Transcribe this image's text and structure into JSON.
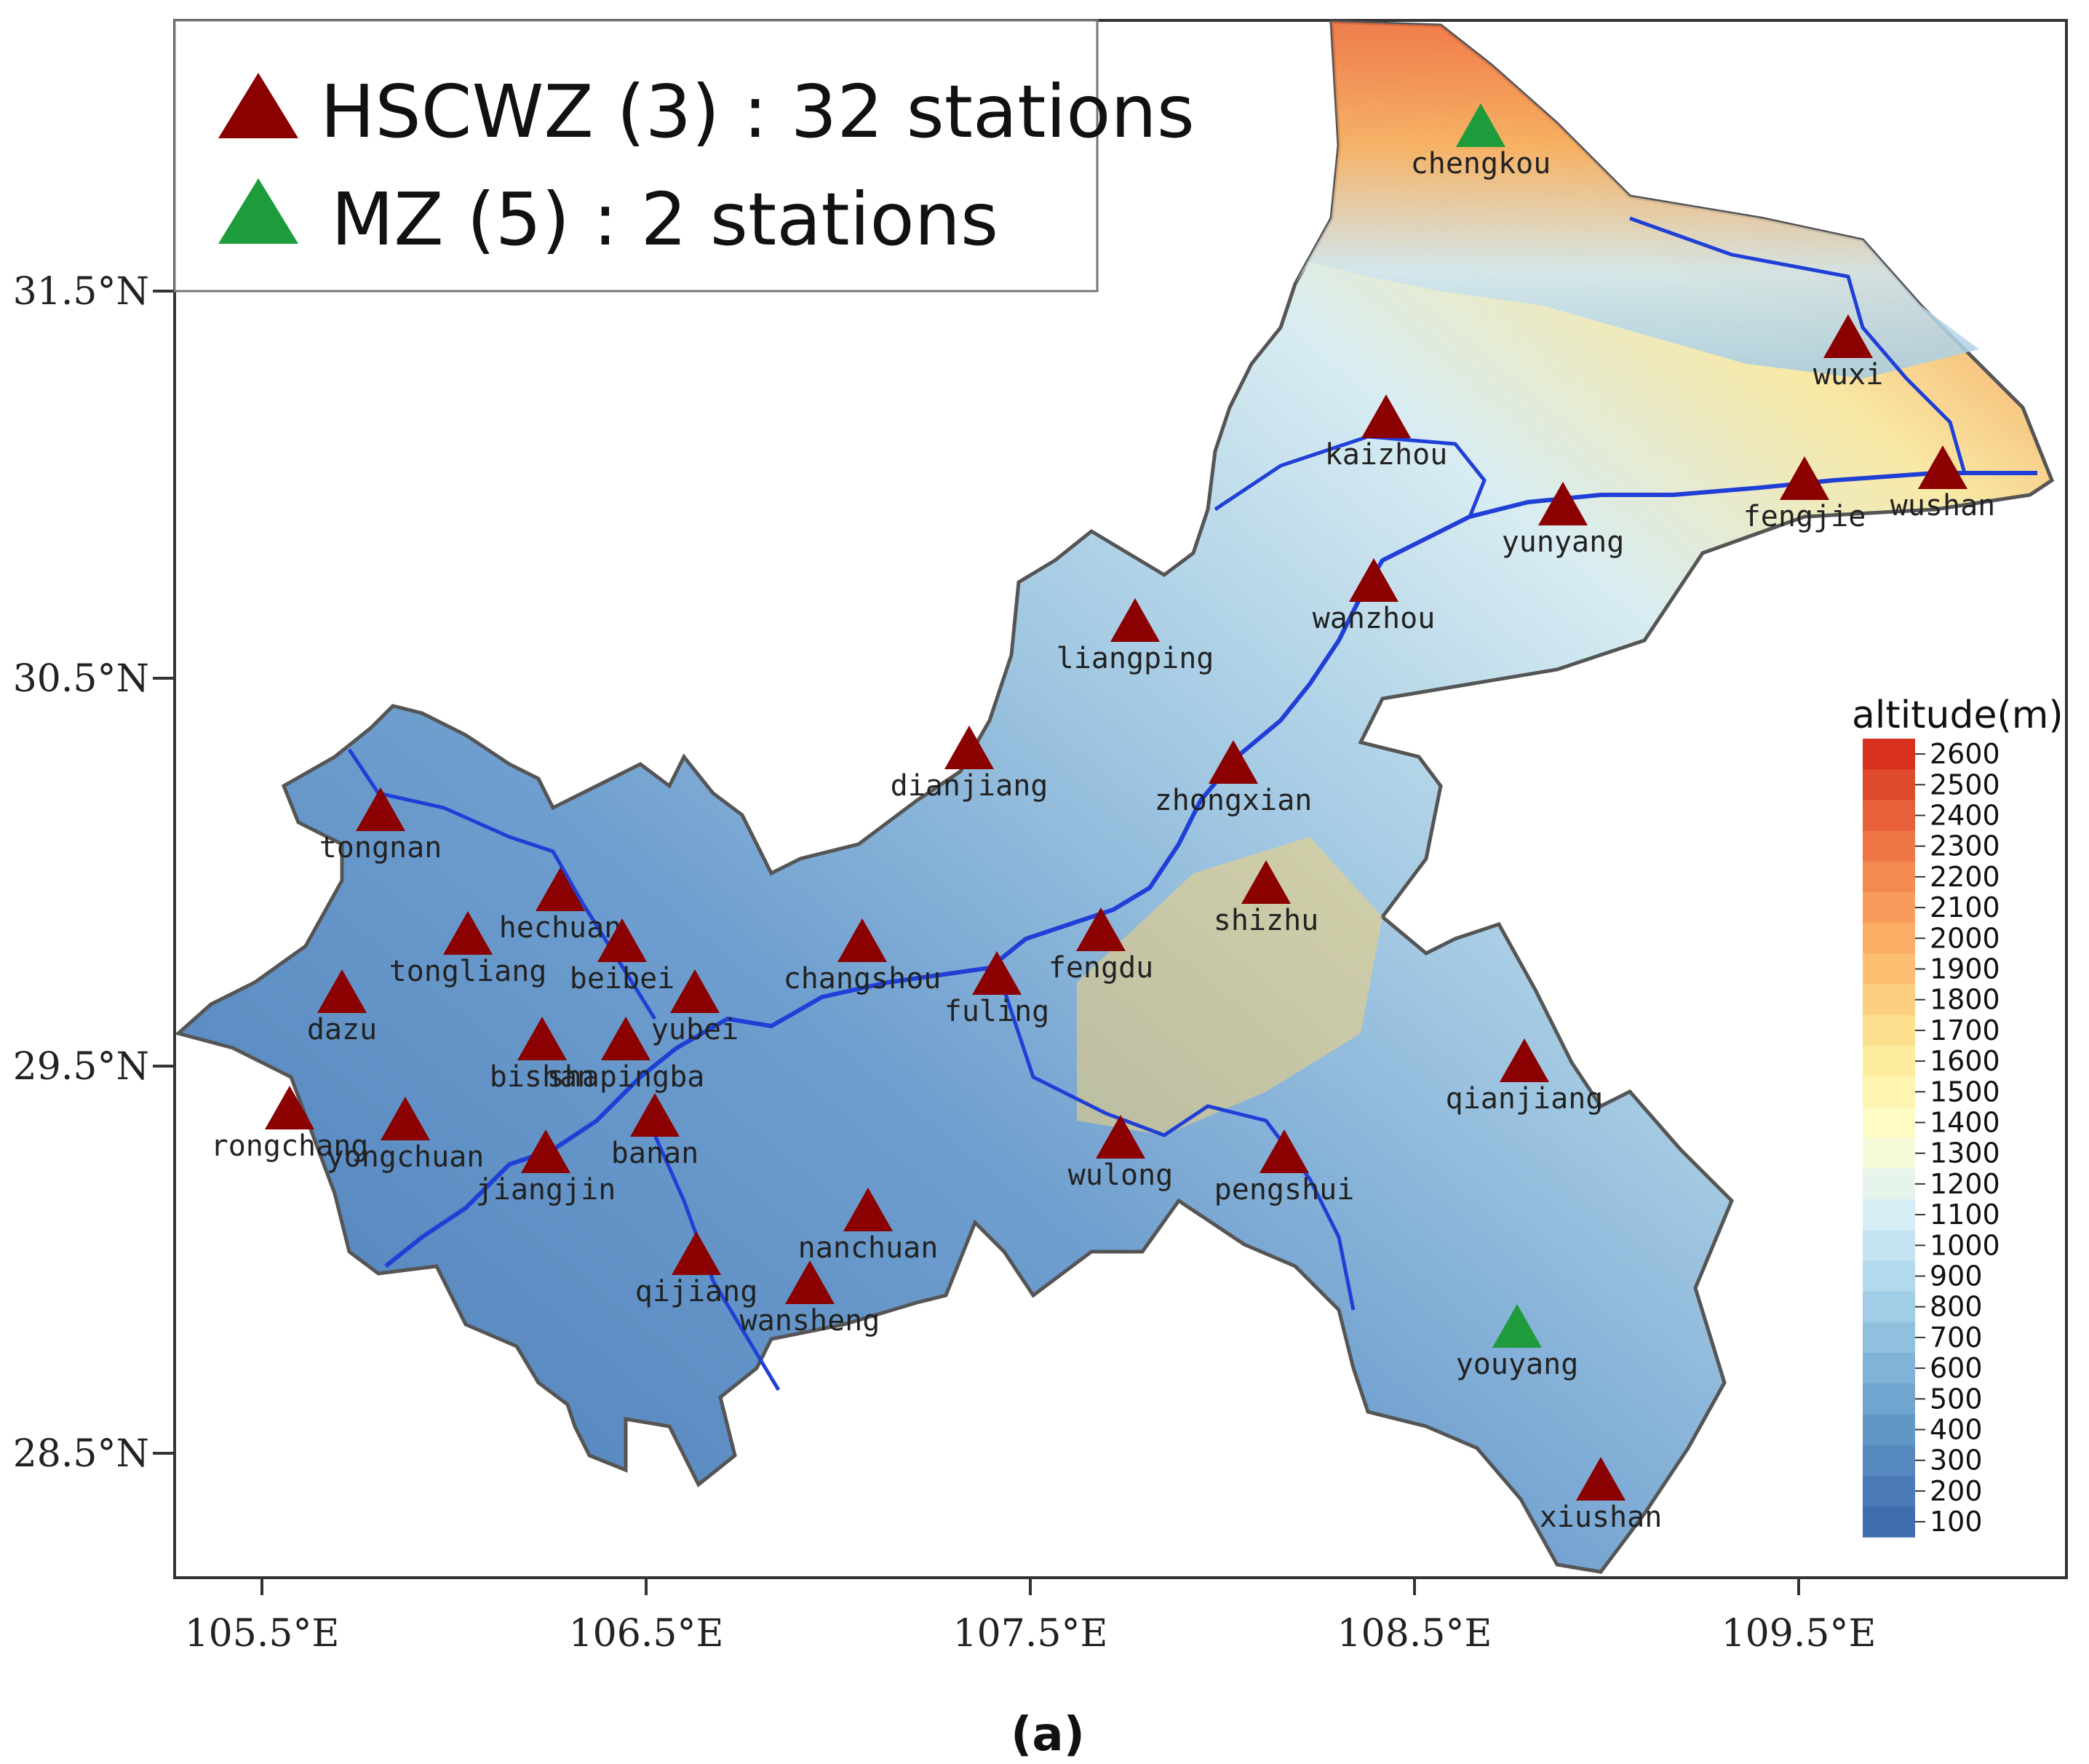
{
  "legend": {
    "items": [
      {
        "label": "HSCWZ (3) : 32 stations",
        "color": "#8b0000"
      },
      {
        "label": "MZ (5) : 2 stations",
        "color": "#1e9b3a"
      }
    ]
  },
  "axes": {
    "lat_ticks": [
      "31.5°N",
      "30.5°N",
      "29.5°N",
      "28.5°N"
    ],
    "lon_ticks": [
      "105.5°E",
      "106.5°E",
      "107.5°E",
      "108.5°E",
      "109.5°E"
    ]
  },
  "colorbar": {
    "title": "altitude(m)",
    "levels": [
      "2600",
      "2500",
      "2400",
      "2300",
      "2200",
      "2100",
      "2000",
      "1900",
      "1800",
      "1700",
      "1600",
      "1500",
      "1400",
      "1300",
      "1200",
      "1100",
      "1000",
      "900",
      "800",
      "700",
      "600",
      "500",
      "400",
      "300",
      "200",
      "100"
    ],
    "colors": [
      "#d7301f",
      "#e04a2c",
      "#e8603a",
      "#ef7547",
      "#f58a51",
      "#f89c5c",
      "#fbae66",
      "#fcbf72",
      "#fdcf80",
      "#fde08e",
      "#fdec9e",
      "#fff4b0",
      "#fffbc4",
      "#f5fad8",
      "#e6f4ec",
      "#d6eef5",
      "#c4e4f1",
      "#b2d9ec",
      "#a1cde6",
      "#8fc1df",
      "#7fb3d7",
      "#70a5cf",
      "#6197c7",
      "#5589bf",
      "#4a7bb6",
      "#3f6eae"
    ]
  },
  "stations": [
    {
      "name": "chengkou",
      "type": "MZ"
    },
    {
      "name": "wuxi",
      "type": "HSCWZ"
    },
    {
      "name": "kaizhou",
      "type": "HSCWZ"
    },
    {
      "name": "wushan",
      "type": "HSCWZ"
    },
    {
      "name": "fengjie",
      "type": "HSCWZ"
    },
    {
      "name": "yunyang",
      "type": "HSCWZ"
    },
    {
      "name": "wanzhou",
      "type": "HSCWZ"
    },
    {
      "name": "liangping",
      "type": "HSCWZ"
    },
    {
      "name": "dianjiang",
      "type": "HSCWZ"
    },
    {
      "name": "zhongxian",
      "type": "HSCWZ"
    },
    {
      "name": "shizhu",
      "type": "HSCWZ"
    },
    {
      "name": "tongnan",
      "type": "HSCWZ"
    },
    {
      "name": "hechuan",
      "type": "HSCWZ"
    },
    {
      "name": "tongliang",
      "type": "HSCWZ"
    },
    {
      "name": "beibei",
      "type": "HSCWZ"
    },
    {
      "name": "dazu",
      "type": "HSCWZ"
    },
    {
      "name": "yubei",
      "type": "HSCWZ"
    },
    {
      "name": "changshou",
      "type": "HSCWZ"
    },
    {
      "name": "fuling",
      "type": "HSCWZ"
    },
    {
      "name": "fengdu",
      "type": "HSCWZ"
    },
    {
      "name": "bishan",
      "type": "HSCWZ"
    },
    {
      "name": "shapingba",
      "type": "HSCWZ"
    },
    {
      "name": "rongchang",
      "type": "HSCWZ"
    },
    {
      "name": "yongchuan",
      "type": "HSCWZ"
    },
    {
      "name": "banan",
      "type": "HSCWZ"
    },
    {
      "name": "jiangjin",
      "type": "HSCWZ"
    },
    {
      "name": "qianjiang",
      "type": "HSCWZ"
    },
    {
      "name": "wulong",
      "type": "HSCWZ"
    },
    {
      "name": "pengshui",
      "type": "HSCWZ"
    },
    {
      "name": "nanchuan",
      "type": "HSCWZ"
    },
    {
      "name": "qijiang",
      "type": "HSCWZ"
    },
    {
      "name": "wansheng",
      "type": "HSCWZ"
    },
    {
      "name": "youyang",
      "type": "MZ"
    },
    {
      "name": "xiushan",
      "type": "HSCWZ"
    }
  ],
  "caption": "(a)"
}
